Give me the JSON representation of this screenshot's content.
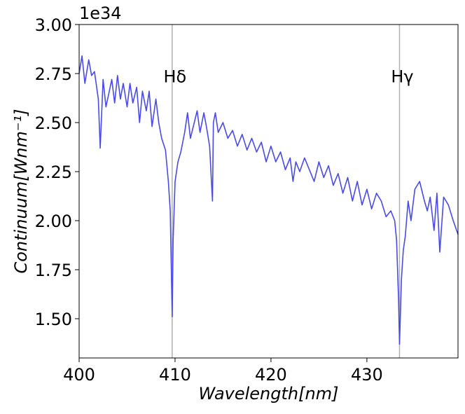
{
  "chart_data": {
    "type": "line",
    "title": "",
    "xlabel": "Wavelength[nm]",
    "ylabel": "Continuum[Wnm⁻¹]",
    "y_offset_label": "1e34",
    "xlim": [
      400,
      439.5
    ],
    "ylim": [
      1.3,
      3.0
    ],
    "x_ticks": [
      400,
      410,
      420,
      430
    ],
    "x_tick_labels": [
      "400",
      "410",
      "420",
      "430"
    ],
    "y_ticks": [
      1.5,
      1.75,
      2.0,
      2.25,
      2.5,
      2.75,
      3.0
    ],
    "y_tick_labels": [
      "1.50",
      "1.75",
      "2.00",
      "2.25",
      "2.50",
      "2.75",
      "3.00"
    ],
    "grid": false,
    "series_color": "#4a4ae6",
    "marker_line_color": "#b0b0b0",
    "reference_lines": [
      {
        "x": 409.7,
        "label": "Hδ",
        "label_y": 2.73
      },
      {
        "x": 433.4,
        "label": "Hγ",
        "label_y": 2.73
      }
    ],
    "series": [
      {
        "x": [
          400.0,
          400.3,
          400.6,
          401.0,
          401.3,
          401.6,
          402.0,
          402.2,
          402.5,
          402.8,
          403.1,
          403.4,
          403.7,
          404.0,
          404.3,
          404.6,
          405.0,
          405.3,
          405.6,
          406.0,
          406.3,
          406.6,
          407.0,
          407.3,
          407.6,
          408.0,
          408.3,
          408.6,
          409.0,
          409.3,
          409.5,
          409.7,
          409.8,
          410.0,
          410.3,
          410.6,
          411.0,
          411.3,
          411.6,
          412.0,
          412.3,
          412.6,
          413.0,
          413.3,
          413.6,
          413.9,
          414.0,
          414.2,
          414.5,
          415.0,
          415.5,
          416.0,
          416.5,
          417.0,
          417.5,
          418.0,
          418.5,
          419.0,
          419.5,
          420.0,
          420.5,
          421.0,
          421.5,
          422.0,
          422.3,
          422.6,
          423.0,
          423.5,
          424.0,
          424.5,
          425.0,
          425.5,
          426.0,
          426.5,
          427.0,
          427.5,
          428.0,
          428.5,
          429.0,
          429.5,
          430.0,
          430.5,
          431.0,
          431.5,
          432.0,
          432.5,
          432.9,
          433.1,
          433.3,
          433.4,
          433.6,
          433.8,
          434.0,
          434.3,
          434.6,
          435.0,
          435.5,
          436.0,
          436.3,
          436.6,
          437.0,
          437.3,
          437.6,
          438.0,
          438.5,
          439.0,
          439.5
        ],
        "y": [
          2.75,
          2.84,
          2.7,
          2.82,
          2.74,
          2.76,
          2.62,
          2.37,
          2.72,
          2.58,
          2.65,
          2.72,
          2.6,
          2.74,
          2.62,
          2.7,
          2.58,
          2.7,
          2.6,
          2.68,
          2.5,
          2.66,
          2.56,
          2.66,
          2.48,
          2.62,
          2.5,
          2.42,
          2.36,
          2.2,
          2.05,
          1.51,
          1.9,
          2.2,
          2.3,
          2.35,
          2.45,
          2.55,
          2.42,
          2.5,
          2.56,
          2.45,
          2.55,
          2.47,
          2.38,
          2.1,
          2.5,
          2.55,
          2.45,
          2.5,
          2.42,
          2.46,
          2.38,
          2.44,
          2.36,
          2.42,
          2.35,
          2.4,
          2.3,
          2.38,
          2.3,
          2.35,
          2.26,
          2.32,
          2.2,
          2.3,
          2.25,
          2.32,
          2.26,
          2.2,
          2.3,
          2.22,
          2.28,
          2.18,
          2.24,
          2.14,
          2.22,
          2.1,
          2.2,
          2.08,
          2.16,
          2.06,
          2.14,
          2.1,
          2.02,
          2.05,
          2.0,
          1.9,
          1.6,
          1.37,
          1.7,
          1.85,
          1.92,
          2.1,
          2.0,
          2.16,
          2.2,
          2.1,
          2.05,
          2.12,
          1.95,
          2.14,
          1.84,
          2.12,
          2.08,
          2.0,
          1.93
        ]
      }
    ]
  }
}
